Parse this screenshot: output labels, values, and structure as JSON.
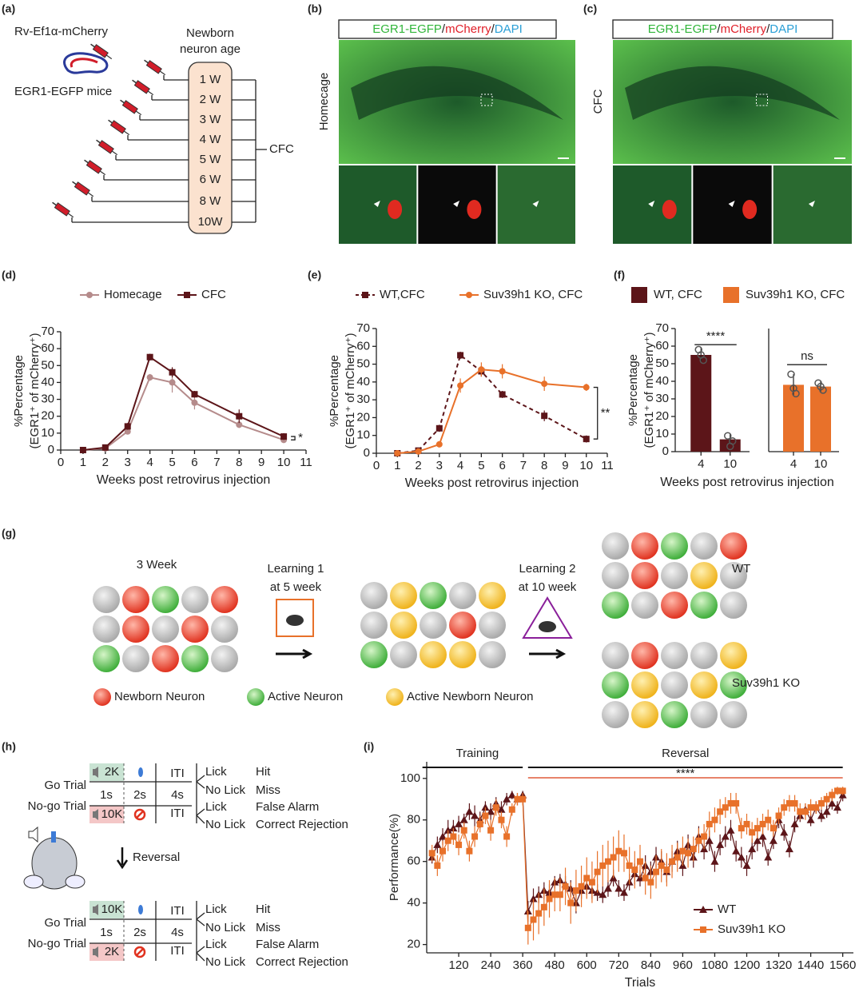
{
  "panel_labels": [
    "(a)",
    "(b)",
    "(c)",
    "(d)",
    "(e)",
    "(f)",
    "(g)",
    "(h)",
    "(i)"
  ],
  "panel_a": {
    "virus": "Rv-Ef1α-mCherry",
    "mice": "EGR1-EGFP mice",
    "age_title": [
      "Newborn",
      "neuron age"
    ],
    "ages": [
      "1 W",
      "2 W",
      "3 W",
      "4 W",
      "5 W",
      "6 W",
      "8 W",
      "10W"
    ],
    "test": "CFC"
  },
  "panel_b": {
    "header": [
      "EGR1-EGFP",
      "/",
      "mCherry",
      "/",
      "DAPI"
    ],
    "condition": "Homecage"
  },
  "panel_c": {
    "header": [
      "EGR1-EGFP",
      "/",
      "mCherry",
      "/",
      "DAPI"
    ],
    "condition": "CFC"
  },
  "panel_g": {
    "stage": "3 Week",
    "learning1": [
      "Learning 1",
      "at 5 week"
    ],
    "learning2": [
      "Learning 2",
      "at 10 week"
    ],
    "groups": [
      "WT",
      "Suv39h1 KO"
    ],
    "legend": [
      "Newborn Neuron",
      "Active Neuron",
      "Active Newborn Neuron"
    ]
  },
  "panel_h": {
    "go_label": "Go Trial",
    "nogo_label": "No-go Trial",
    "blocks": [
      {
        "go_tone": "2K",
        "nogo_tone": "10K"
      },
      {
        "go_tone": "10K",
        "nogo_tone": "2K"
      }
    ],
    "durations": [
      "1s",
      "2s",
      "4s"
    ],
    "iti": "ITI",
    "lick": "Lick",
    "no_lick": "No Lick",
    "go_outcomes": [
      "Hit",
      "Miss"
    ],
    "nogo_outcomes": [
      "False Alarm",
      "Correct Rejection"
    ],
    "reversal": "Reversal"
  },
  "chart_data": [
    {
      "type": "line",
      "x": [
        1,
        2,
        3,
        4,
        5,
        6,
        8,
        10
      ],
      "xlim": [
        0,
        11
      ],
      "xticks": [
        0,
        1,
        2,
        3,
        4,
        5,
        6,
        7,
        8,
        9,
        10,
        11
      ],
      "ylim": [
        0,
        70
      ],
      "yticks": [
        0,
        10,
        20,
        30,
        40,
        50,
        60,
        70
      ],
      "x_label": "Weeks post retrovirus injection",
      "y_label": [
        "%Percentage",
        "(EGR1⁺ of mCherry⁺)"
      ],
      "annotation": "*",
      "series": [
        {
          "name": "Homecage",
          "color": "#b58b8b",
          "marker": "circle",
          "dashed": false,
          "values": [
            0,
            1,
            11,
            43,
            40,
            28,
            15,
            6
          ],
          "errors": [
            0.5,
            1,
            1,
            2,
            6,
            4,
            2,
            1
          ]
        },
        {
          "name": "CFC",
          "color": "#5c1519",
          "marker": "square",
          "dashed": false,
          "values": [
            0,
            1.5,
            14,
            55,
            46,
            33,
            20,
            8
          ],
          "errors": [
            0.5,
            1,
            2,
            2,
            3,
            2,
            4,
            2
          ]
        }
      ]
    },
    {
      "type": "line",
      "x": [
        1,
        2,
        3,
        4,
        5,
        6,
        8,
        10
      ],
      "xlim": [
        0,
        11
      ],
      "xticks": [
        0,
        1,
        2,
        3,
        4,
        5,
        6,
        7,
        8,
        9,
        10,
        11
      ],
      "ylim": [
        0,
        70
      ],
      "yticks": [
        0,
        10,
        20,
        30,
        40,
        50,
        60,
        70
      ],
      "x_label": "Weeks post retrovirus injection",
      "y_label": [
        "%Percentage",
        "(EGR1⁺ of mCherry⁺)"
      ],
      "annotation": "**",
      "series": [
        {
          "name": "WT,CFC",
          "color": "#5c1519",
          "marker": "square",
          "dashed": true,
          "values": [
            0,
            1.5,
            14,
            55,
            46,
            33,
            21,
            8
          ],
          "errors": [
            0.5,
            1,
            2,
            2,
            3,
            2,
            3,
            2
          ]
        },
        {
          "name": "Suv39h1 KO, CFC",
          "color": "#e8712a",
          "marker": "circle",
          "dashed": false,
          "values": [
            0,
            1,
            5,
            38,
            47,
            46,
            39,
            37
          ],
          "errors": [
            0.5,
            1,
            1,
            4,
            4,
            4,
            4,
            2
          ]
        }
      ]
    },
    {
      "type": "bar",
      "ylim": [
        0,
        70
      ],
      "yticks": [
        0,
        10,
        20,
        30,
        40,
        50,
        60,
        70
      ],
      "x_label": "Weeks post retrovirus injection",
      "y_label": [
        "%Percentage",
        "(EGR1⁺ of mCherry⁺)"
      ],
      "series": [
        {
          "name": "WT, CFC",
          "color": "#5c1519",
          "categories": [
            "4",
            "10"
          ],
          "values": [
            55,
            7
          ],
          "errors": [
            4,
            3
          ],
          "points": [
            [
              58,
              55,
              52
            ],
            [
              9,
              3,
              6
            ]
          ],
          "annotation": "****"
        },
        {
          "name": "Suv39h1 KO, CFC",
          "color": "#e8712a",
          "categories": [
            "4",
            "10"
          ],
          "values": [
            38,
            37
          ],
          "errors": [
            6,
            3
          ],
          "points": [
            [
              44,
              36,
              33
            ],
            [
              39,
              37,
              35
            ]
          ],
          "annotation": "ns"
        }
      ]
    },
    {
      "type": "line",
      "x": [
        20,
        40,
        60,
        80,
        100,
        120,
        140,
        160,
        180,
        200,
        220,
        240,
        260,
        280,
        300,
        320,
        340,
        360,
        380,
        400,
        420,
        440,
        460,
        480,
        500,
        520,
        540,
        560,
        580,
        600,
        620,
        640,
        660,
        680,
        700,
        720,
        740,
        760,
        780,
        800,
        820,
        840,
        860,
        880,
        900,
        920,
        940,
        960,
        980,
        1000,
        1020,
        1040,
        1060,
        1080,
        1100,
        1120,
        1140,
        1160,
        1180,
        1200,
        1220,
        1240,
        1260,
        1280,
        1300,
        1320,
        1340,
        1360,
        1380,
        1400,
        1420,
        1440,
        1460,
        1480,
        1500,
        1520,
        1540,
        1560
      ],
      "xlim": [
        0,
        1600
      ],
      "xticks": [
        120,
        240,
        360,
        480,
        600,
        720,
        840,
        960,
        1080,
        1200,
        1320,
        1440,
        1560
      ],
      "ylim": [
        16,
        108
      ],
      "yticks": [
        20,
        40,
        60,
        80,
        100
      ],
      "x_label": "Trials",
      "y_label": "Performance(%)",
      "annotations": [
        "Training",
        "Reversal",
        "****"
      ],
      "series": [
        {
          "name": "WT",
          "color": "#5c1519",
          "marker": "triangle",
          "dashed": false,
          "values": [
            62,
            68,
            72,
            75,
            76,
            78,
            80,
            84,
            82,
            80,
            86,
            84,
            88,
            85,
            90,
            92,
            90,
            92,
            36,
            42,
            44,
            46,
            45,
            50,
            51,
            49,
            47,
            40,
            46,
            48,
            46,
            45,
            44,
            47,
            52,
            47,
            45,
            50,
            54,
            52,
            58,
            55,
            62,
            60,
            55,
            60,
            65,
            58,
            68,
            62,
            72,
            66,
            70,
            60,
            68,
            72,
            75,
            65,
            62,
            58,
            66,
            70,
            72,
            62,
            70,
            80,
            74,
            66,
            78,
            82,
            85,
            80,
            86,
            82,
            84,
            88,
            86,
            92
          ],
          "errors": [
            3,
            4,
            4,
            5,
            4,
            4,
            3,
            4,
            5,
            4,
            3,
            4,
            3,
            4,
            3,
            2,
            3,
            2,
            5,
            5,
            4,
            4,
            4,
            3,
            3,
            4,
            4,
            5,
            4,
            4,
            4,
            4,
            4,
            4,
            4,
            4,
            4,
            4,
            5,
            4,
            5,
            5,
            5,
            5,
            5,
            5,
            5,
            5,
            5,
            5,
            5,
            5,
            5,
            5,
            5,
            5,
            5,
            5,
            5,
            5,
            5,
            5,
            5,
            4,
            4,
            4,
            4,
            4,
            4,
            3,
            3,
            3,
            3,
            3,
            3,
            3,
            3,
            3
          ]
        },
        {
          "name": "Suv39h1 KO",
          "color": "#e8712a",
          "marker": "square",
          "dashed": false,
          "values": [
            64,
            58,
            65,
            70,
            72,
            68,
            75,
            65,
            72,
            78,
            82,
            75,
            86,
            80,
            72,
            85,
            90,
            90,
            28,
            32,
            35,
            38,
            42,
            44,
            44,
            48,
            40,
            46,
            48,
            52,
            50,
            55,
            58,
            60,
            62,
            65,
            64,
            58,
            56,
            60,
            52,
            50,
            55,
            58,
            56,
            60,
            62,
            65,
            64,
            66,
            70,
            72,
            78,
            80,
            84,
            86,
            88,
            88,
            76,
            78,
            74,
            76,
            78,
            80,
            76,
            82,
            86,
            88,
            88,
            84,
            84,
            86,
            86,
            88,
            90,
            92,
            94,
            94
          ],
          "errors": [
            4,
            5,
            5,
            5,
            4,
            5,
            4,
            5,
            5,
            4,
            4,
            5,
            4,
            4,
            5,
            3,
            3,
            3,
            8,
            10,
            10,
            9,
            9,
            8,
            8,
            9,
            10,
            10,
            10,
            10,
            10,
            10,
            10,
            10,
            10,
            10,
            9,
            9,
            9,
            8,
            8,
            8,
            8,
            8,
            8,
            8,
            7,
            7,
            7,
            6,
            6,
            6,
            6,
            6,
            6,
            5,
            5,
            5,
            5,
            5,
            5,
            5,
            5,
            5,
            4,
            4,
            4,
            4,
            4,
            4,
            4,
            4,
            3,
            3,
            3,
            3,
            2,
            2
          ]
        }
      ]
    }
  ]
}
